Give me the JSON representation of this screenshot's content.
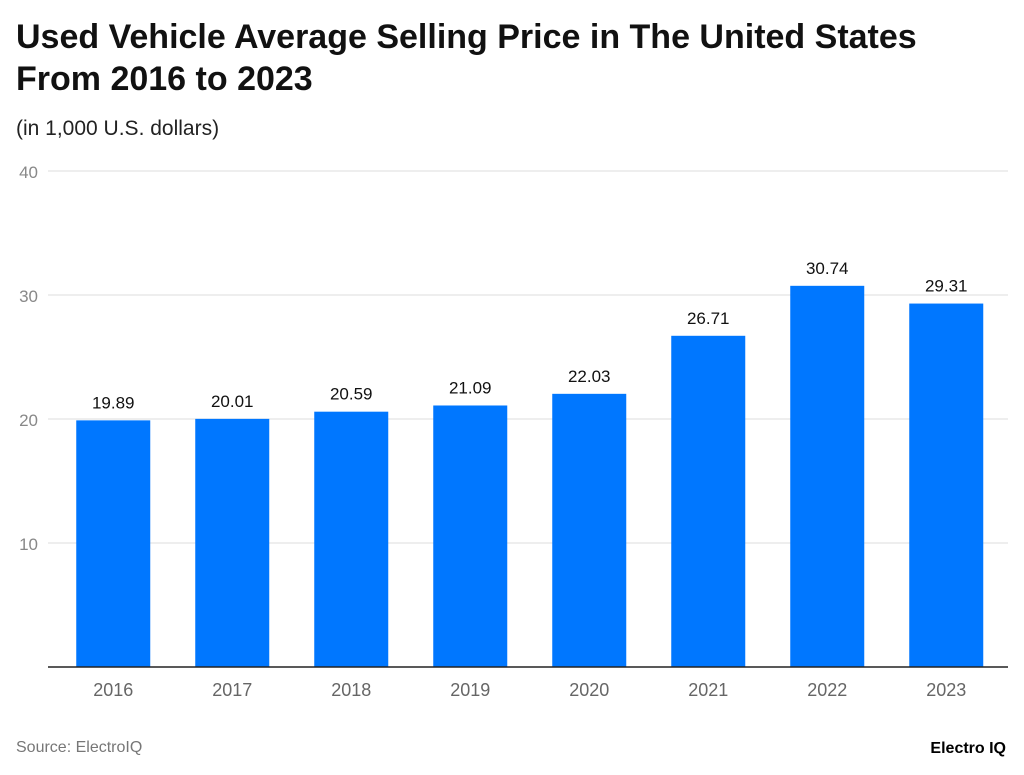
{
  "chart_data": {
    "type": "bar",
    "title": "Used Vehicle Average Selling Price in The United States From 2016 to 2023",
    "subtitle": "(in 1,000 U.S. dollars)",
    "categories": [
      "2016",
      "2017",
      "2018",
      "2019",
      "2020",
      "2021",
      "2022",
      "2023"
    ],
    "values": [
      19.89,
      20.01,
      20.59,
      21.09,
      22.03,
      26.71,
      30.74,
      29.31
    ],
    "ylim": [
      0,
      40
    ],
    "yticks": [
      10,
      20,
      30,
      40
    ],
    "grid": true,
    "bar_color": "#0077ff"
  },
  "footer": {
    "source": "Source: ElectroIQ",
    "logo": "Electro IQ"
  }
}
